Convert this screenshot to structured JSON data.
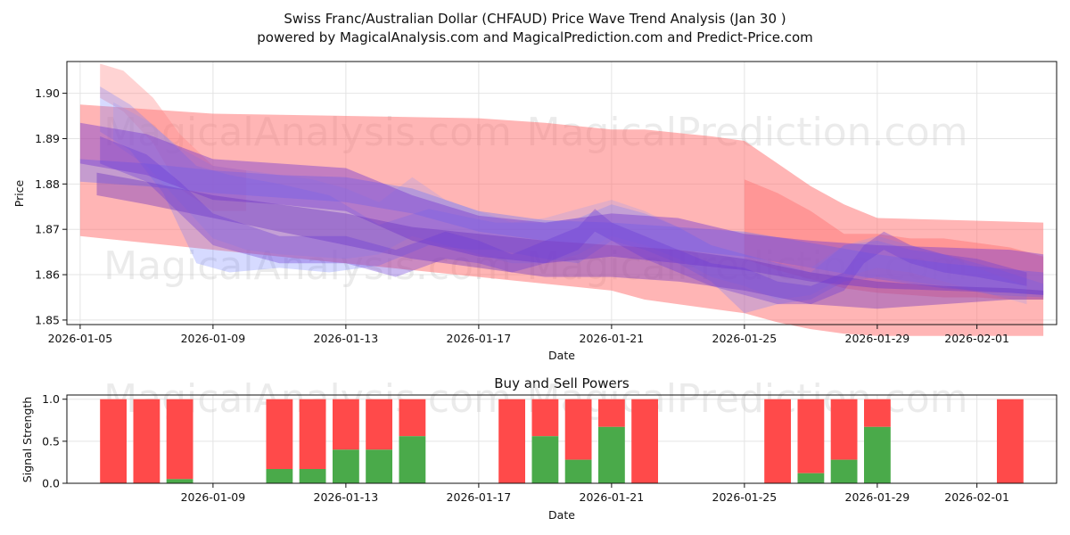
{
  "chart_data": [
    {
      "type": "area",
      "title_line1": "Swiss Franc/Australian Dollar (CHFAUD) Price Wave Trend Analysis (Jan 30 )",
      "title_line2": "powered by MagicalAnalysis.com and MagicalPrediction.com and Predict-Price.com",
      "xlabel": "Date",
      "ylabel": "Price",
      "ylim": [
        1.849,
        1.907
      ],
      "xlim_days": [
        -0.4,
        29.4
      ],
      "x_ticks": [
        {
          "day": 0,
          "label": "2026-01-05"
        },
        {
          "day": 4,
          "label": "2026-01-09"
        },
        {
          "day": 8,
          "label": "2026-01-13"
        },
        {
          "day": 12,
          "label": "2026-01-17"
        },
        {
          "day": 16,
          "label": "2026-01-21"
        },
        {
          "day": 20,
          "label": "2026-01-25"
        },
        {
          "day": 24,
          "label": "2026-01-29"
        },
        {
          "day": 27,
          "label": "2026-02-01"
        }
      ],
      "y_ticks": [
        {
          "value": 1.85,
          "label": "1.85"
        },
        {
          "value": 1.86,
          "label": "1.86"
        },
        {
          "value": 1.87,
          "label": "1.87"
        },
        {
          "value": 1.88,
          "label": "1.88"
        },
        {
          "value": 1.89,
          "label": "1.89"
        },
        {
          "value": 1.9,
          "label": "1.90"
        }
      ],
      "watermarks": [
        "MagicalAnalysis.com",
        "MagicalPrediction.com",
        "MagicalAnalysis.com",
        "MagicalPrediction.com"
      ],
      "bands": [
        {
          "name": "red-envelope-wide",
          "color": "#ff6b6b",
          "opacity": 0.5,
          "x": [
            0,
            4,
            8,
            12,
            14,
            16,
            17,
            19,
            20,
            21,
            22,
            23,
            24,
            29
          ],
          "upper": [
            1.8975,
            1.8955,
            1.895,
            1.8945,
            1.8935,
            1.892,
            1.892,
            1.8905,
            1.8895,
            1.8845,
            1.8795,
            1.8755,
            1.8725,
            1.8715
          ],
          "lower": [
            1.8685,
            1.8655,
            1.8625,
            1.8595,
            1.858,
            1.8565,
            1.8545,
            1.8525,
            1.8515,
            1.8495,
            1.848,
            1.847,
            1.8465,
            1.8465
          ]
        },
        {
          "name": "red-spike-early",
          "color": "#ff8080",
          "opacity": 0.35,
          "x": [
            0.6,
            1.3,
            2.2,
            3.0,
            4.0,
            5.0
          ],
          "upper": [
            1.9065,
            1.905,
            1.899,
            1.891,
            1.884,
            1.883
          ],
          "lower": [
            1.899,
            1.896,
            1.889,
            1.879,
            1.874,
            1.874
          ]
        },
        {
          "name": "red-right-band",
          "color": "#ff7070",
          "opacity": 0.45,
          "x": [
            20,
            21,
            22,
            23,
            24,
            25,
            26,
            27,
            28,
            29
          ],
          "upper": [
            1.881,
            1.878,
            1.874,
            1.869,
            1.869,
            1.868,
            1.868,
            1.867,
            1.866,
            1.864
          ],
          "lower": [
            1.8635,
            1.861,
            1.859,
            1.857,
            1.856,
            1.8555,
            1.855,
            1.855,
            1.8545,
            1.8545
          ]
        },
        {
          "name": "blue-band-upper",
          "color": "#5a6cff",
          "opacity": 0.35,
          "x": [
            0,
            2,
            4,
            6,
            8,
            10,
            12,
            14,
            16,
            18,
            20,
            22,
            24,
            26,
            29
          ],
          "upper": [
            1.8855,
            1.8845,
            1.883,
            1.882,
            1.8815,
            1.879,
            1.874,
            1.872,
            1.8715,
            1.8705,
            1.8695,
            1.867,
            1.8645,
            1.8625,
            1.8605
          ],
          "lower": [
            1.8805,
            1.8795,
            1.878,
            1.877,
            1.876,
            1.8735,
            1.8695,
            1.8675,
            1.8665,
            1.8655,
            1.864,
            1.8615,
            1.859,
            1.857,
            1.8555
          ]
        },
        {
          "name": "blue-wave-1",
          "color": "#6d7bff",
          "opacity": 0.28,
          "x": [
            0.6,
            1.5,
            2.5,
            3.5,
            4.5,
            6,
            7.5,
            9,
            10.5,
            11.8,
            12.5,
            14,
            15,
            16,
            17,
            18,
            19,
            20,
            21,
            22,
            23,
            24,
            25,
            26,
            27.5,
            29
          ],
          "upper": [
            1.9015,
            1.8975,
            1.891,
            1.884,
            1.882,
            1.88,
            1.8775,
            1.871,
            1.8745,
            1.8725,
            1.8715,
            1.8715,
            1.8725,
            1.8755,
            1.8735,
            1.8705,
            1.8665,
            1.8645,
            1.8625,
            1.8605,
            1.8665,
            1.8675,
            1.8655,
            1.8645,
            1.8615,
            1.858
          ],
          "lower": [
            1.8915,
            1.8875,
            1.878,
            1.8625,
            1.8605,
            1.8615,
            1.8605,
            1.862,
            1.8665,
            1.8655,
            1.8655,
            1.8635,
            1.8625,
            1.8675,
            1.8655,
            1.8625,
            1.8585,
            1.8515,
            1.8535,
            1.8545,
            1.8585,
            1.8595,
            1.8585,
            1.8575,
            1.8555,
            1.855
          ]
        },
        {
          "name": "blue-wave-2",
          "color": "#8690ff",
          "opacity": 0.22,
          "x": [
            1,
            2,
            3,
            4,
            5,
            6,
            7,
            8,
            9,
            10,
            11,
            12,
            13,
            14,
            15,
            16,
            17,
            18,
            19,
            20,
            21,
            22,
            23,
            24,
            25,
            26,
            27,
            28.5
          ],
          "upper": [
            1.898,
            1.894,
            1.888,
            1.884,
            1.883,
            1.882,
            1.881,
            1.879,
            1.876,
            1.8815,
            1.8765,
            1.874,
            1.8715,
            1.8725,
            1.8745,
            1.8765,
            1.874,
            1.8705,
            1.8665,
            1.8645,
            1.8625,
            1.8615,
            1.8665,
            1.8685,
            1.8665,
            1.8645,
            1.8615,
            1.8575
          ],
          "lower": [
            1.889,
            1.884,
            1.876,
            1.868,
            1.8655,
            1.8645,
            1.864,
            1.8635,
            1.8645,
            1.8685,
            1.8665,
            1.8645,
            1.8625,
            1.8625,
            1.8645,
            1.8685,
            1.8665,
            1.8635,
            1.8595,
            1.8575,
            1.8545,
            1.8555,
            1.8595,
            1.8615,
            1.8605,
            1.8585,
            1.8565,
            1.8535
          ]
        },
        {
          "name": "purple-band-main",
          "color": "#7a3cd0",
          "opacity": 0.45,
          "x": [
            0,
            2,
            4,
            6,
            8,
            10,
            12,
            14,
            16,
            18,
            20,
            22,
            24,
            26,
            28,
            29
          ],
          "upper": [
            1.8935,
            1.891,
            1.8855,
            1.8845,
            1.8835,
            1.8775,
            1.873,
            1.8715,
            1.8735,
            1.8725,
            1.869,
            1.8675,
            1.8665,
            1.866,
            1.8655,
            1.8645
          ],
          "lower": [
            1.8845,
            1.882,
            1.8765,
            1.8755,
            1.874,
            1.8675,
            1.864,
            1.8625,
            1.864,
            1.8625,
            1.861,
            1.8585,
            1.857,
            1.8565,
            1.856,
            1.8555
          ]
        },
        {
          "name": "purple-band-lower",
          "color": "#6a30c0",
          "opacity": 0.4,
          "x": [
            0.5,
            2,
            4,
            6,
            8,
            10,
            12,
            14,
            16,
            18,
            20,
            22,
            24,
            26,
            28,
            29
          ],
          "upper": [
            1.8825,
            1.8805,
            1.8775,
            1.8755,
            1.8735,
            1.8705,
            1.869,
            1.8675,
            1.8665,
            1.8655,
            1.8635,
            1.8605,
            1.8585,
            1.8575,
            1.857,
            1.8565
          ],
          "lower": [
            1.8775,
            1.8755,
            1.8725,
            1.8695,
            1.8665,
            1.8635,
            1.8615,
            1.8595,
            1.8595,
            1.8585,
            1.8565,
            1.8535,
            1.8525,
            1.8535,
            1.8545,
            1.8545
          ]
        },
        {
          "name": "purple-wave",
          "color": "#6a3ad8",
          "opacity": 0.35,
          "x": [
            0.6,
            2,
            3,
            4,
            6,
            8,
            9.5,
            11,
            12,
            13,
            14,
            15,
            15.5,
            16,
            17,
            18,
            19,
            20,
            21,
            22,
            23,
            23.6,
            24.2,
            25,
            26,
            27,
            28.5
          ],
          "upper": [
            1.8905,
            1.8865,
            1.8805,
            1.8735,
            1.8685,
            1.8685,
            1.8655,
            1.8695,
            1.8675,
            1.8645,
            1.8675,
            1.8705,
            1.8745,
            1.8715,
            1.8685,
            1.8655,
            1.8625,
            1.8615,
            1.8585,
            1.8575,
            1.8605,
            1.8665,
            1.8695,
            1.8665,
            1.8645,
            1.8635,
            1.8605
          ],
          "lower": [
            1.8845,
            1.8805,
            1.8735,
            1.8665,
            1.8625,
            1.8625,
            1.8595,
            1.8635,
            1.8625,
            1.8605,
            1.8625,
            1.8655,
            1.8695,
            1.8675,
            1.8635,
            1.8605,
            1.8575,
            1.8555,
            1.8535,
            1.8535,
            1.8565,
            1.8625,
            1.8655,
            1.8625,
            1.8605,
            1.8595,
            1.8575
          ]
        }
      ]
    },
    {
      "type": "bar",
      "title": "Buy and Sell Powers",
      "xlabel": "Date",
      "ylabel": "Signal Strength",
      "ylim": [
        0,
        1.05
      ],
      "xlim_days": [
        -0.4,
        29.4
      ],
      "x_ticks": [
        {
          "day": 4,
          "label": "2026-01-09"
        },
        {
          "day": 8,
          "label": "2026-01-13"
        },
        {
          "day": 12,
          "label": "2026-01-17"
        },
        {
          "day": 16,
          "label": "2026-01-21"
        },
        {
          "day": 20,
          "label": "2026-01-25"
        },
        {
          "day": 24,
          "label": "2026-01-29"
        },
        {
          "day": 27,
          "label": "2026-02-01"
        }
      ],
      "y_ticks": [
        {
          "value": 0.0,
          "label": "0.0"
        },
        {
          "value": 0.5,
          "label": "0.5"
        },
        {
          "value": 1.0,
          "label": "1.0"
        }
      ],
      "watermarks": [
        "MagicalAnalysis.com",
        "MagicalPrediction.com"
      ],
      "buy_color": "#4aaa4a",
      "sell_color": "#ff4a4a",
      "bars": [
        {
          "day": 1,
          "buy": 0.0
        },
        {
          "day": 2,
          "buy": 0.0
        },
        {
          "day": 3,
          "buy": 0.05
        },
        {
          "day": 6,
          "buy": 0.17
        },
        {
          "day": 7,
          "buy": 0.17
        },
        {
          "day": 8,
          "buy": 0.4
        },
        {
          "day": 9,
          "buy": 0.4
        },
        {
          "day": 10,
          "buy": 0.56
        },
        {
          "day": 13,
          "buy": 0.0
        },
        {
          "day": 14,
          "buy": 0.56
        },
        {
          "day": 15,
          "buy": 0.28
        },
        {
          "day": 16,
          "buy": 0.67
        },
        {
          "day": 17,
          "buy": 0.0
        },
        {
          "day": 21,
          "buy": 0.0
        },
        {
          "day": 22,
          "buy": 0.12
        },
        {
          "day": 23,
          "buy": 0.28
        },
        {
          "day": 24,
          "buy": 0.67
        },
        {
          "day": 28,
          "buy": 0.0
        }
      ]
    }
  ]
}
